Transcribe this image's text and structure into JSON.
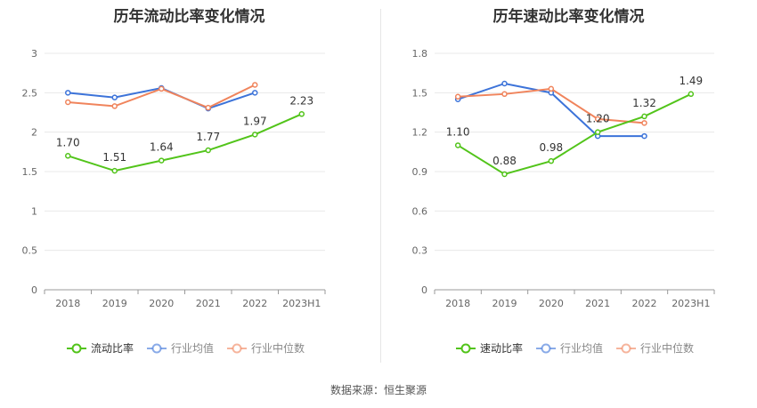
{
  "source_text": "数据来源：恒生聚源",
  "colors": {
    "company": "#52c41a",
    "industry_avg": "#3c73d9",
    "industry_median": "#f0845c"
  },
  "chart_data": [
    {
      "type": "line",
      "title": "历年流动比率变化情况",
      "categories": [
        "2018",
        "2019",
        "2020",
        "2021",
        "2022",
        "2023H1"
      ],
      "ylim": [
        0,
        3
      ],
      "yticks": [
        0,
        0.5,
        1,
        1.5,
        2,
        2.5,
        3
      ],
      "ytick_labels": [
        "0",
        "0.5",
        "1",
        "1.5",
        "2",
        "2.5",
        "3"
      ],
      "grid": true,
      "legend_position": "bottom",
      "series": [
        {
          "name": "流动比率",
          "key": "company",
          "values": [
            1.7,
            1.51,
            1.64,
            1.77,
            1.97,
            2.23
          ],
          "labels": [
            "1.70",
            "1.51",
            "1.64",
            "1.77",
            "1.97",
            "2.23"
          ]
        },
        {
          "name": "行业均值",
          "key": "industry_avg",
          "values": [
            2.5,
            2.44,
            2.56,
            2.3,
            2.5,
            null
          ]
        },
        {
          "name": "行业中位数",
          "key": "industry_median",
          "values": [
            2.38,
            2.33,
            2.55,
            2.31,
            2.6,
            null
          ]
        }
      ]
    },
    {
      "type": "line",
      "title": "历年速动比率变化情况",
      "categories": [
        "2018",
        "2019",
        "2020",
        "2021",
        "2022",
        "2023H1"
      ],
      "ylim": [
        0,
        1.8
      ],
      "yticks": [
        0,
        0.3,
        0.6,
        0.9,
        1.2,
        1.5,
        1.8
      ],
      "ytick_labels": [
        "0",
        "0.3",
        "0.6",
        "0.9",
        "1.2",
        "1.5",
        "1.8"
      ],
      "grid": true,
      "legend_position": "bottom",
      "series": [
        {
          "name": "速动比率",
          "key": "company",
          "values": [
            1.1,
            0.88,
            0.98,
            1.2,
            1.32,
            1.49
          ],
          "labels": [
            "1.10",
            "0.88",
            "0.98",
            "1.20",
            "1.32",
            "1.49"
          ]
        },
        {
          "name": "行业均值",
          "key": "industry_avg",
          "values": [
            1.45,
            1.57,
            1.5,
            1.17,
            1.17,
            null
          ]
        },
        {
          "name": "行业中位数",
          "key": "industry_median",
          "values": [
            1.47,
            1.49,
            1.53,
            1.3,
            1.27,
            null
          ]
        }
      ]
    }
  ]
}
